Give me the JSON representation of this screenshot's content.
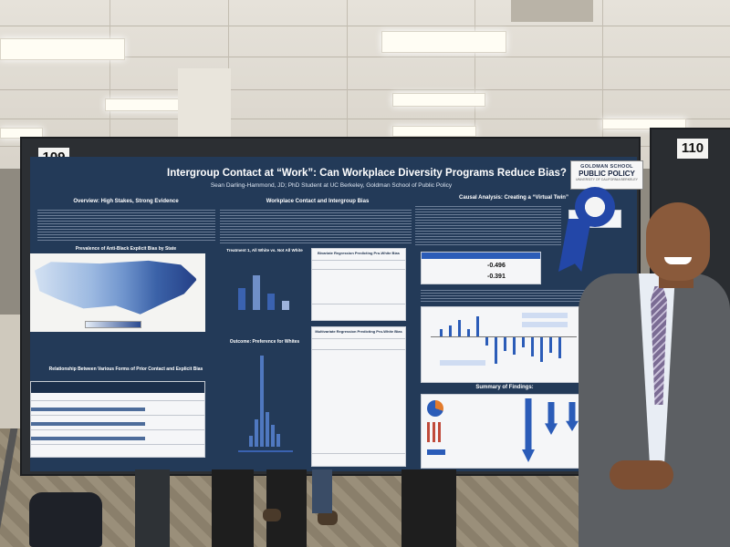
{
  "poster_number_left": "109",
  "poster_number_right": "110",
  "poster": {
    "title": "Intergroup Contact at “Work”: Can Workplace Diversity Programs Reduce Bias?",
    "subtitle": "Sean Darling-Hammond, JD; PhD Student at UC Berkeley, Goldman School of Public Policy",
    "logo_line1": "GOLDMAN SCHOOL",
    "logo_line2": "PUBLIC POLICY",
    "logo_line3": "UNIVERSITY OF CALIFORNIA BERKELEY",
    "panels": {
      "overview_title": "Overview: High Stakes, Strong Evidence",
      "map_title": "Prevalence of Anti-Black Explicit Bias by State",
      "relationship_title": "Relationship Between Various Forms of Prior Contact and Explicit Bias",
      "workplace_title": "Workplace Contact and Intergroup Bias",
      "treatment_title": "Treatment 1, All White vs. Not All White",
      "outcome_title": "Outcome: Preference for Whites",
      "causal_title": "Causal Analysis: Creating a “Virtual Twin”",
      "summary_title": "Summary of Findings:"
    },
    "tables": {
      "bivariate_title": "Bivariate Regression Predicting Pro-White Bias",
      "multivariate_title": "Multivariate Regression Predicting Pro-White Bias",
      "causal_effect_1": "-0.496",
      "causal_effect_2": "-0.391"
    }
  },
  "colors": {
    "poster_bg": "#233a58",
    "board": "#2c2f33",
    "accent_blue": "#2b5cb8",
    "ribbon_blue": "#2347a8"
  }
}
